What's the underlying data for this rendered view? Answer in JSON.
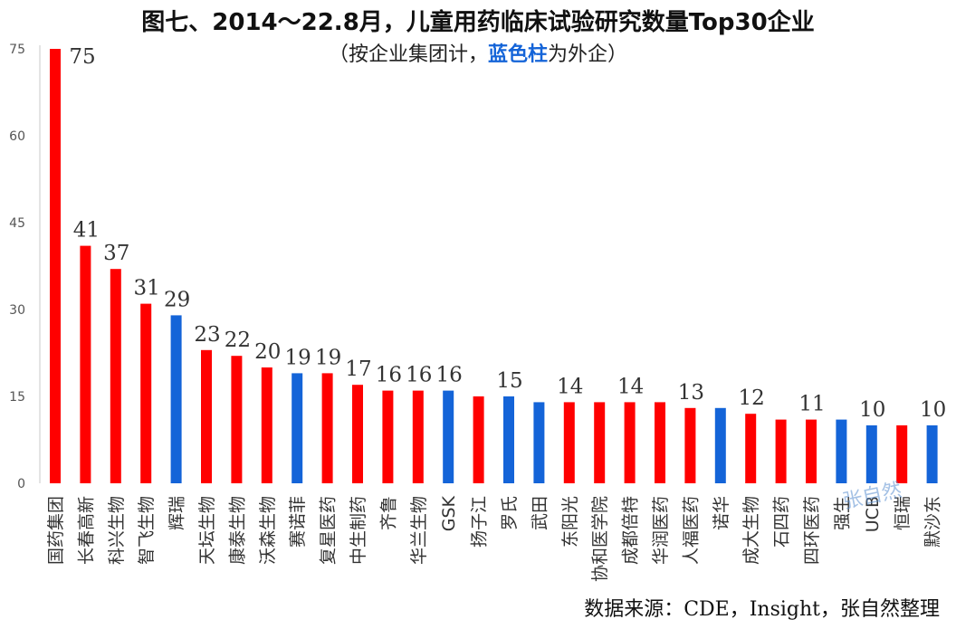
{
  "title": "图七、2014～22.8月，儿童用药临床试验研究数量Top30企业",
  "subtitle": {
    "before": "（按企业集团计，",
    "highlight": "蓝色柱",
    "after": "为外企）"
  },
  "source": "数据来源：CDE，Insight，张自然整理",
  "watermark": "张自然",
  "colors": {
    "domestic": "#ff0000",
    "foreign": "#1464d8"
  },
  "chart_data": {
    "type": "bar",
    "categories": [
      "国药集团",
      "长春高新",
      "科兴生物",
      "智飞生物",
      "辉瑞",
      "天坛生物",
      "康泰生物",
      "沃森生物",
      "赛诺菲",
      "复星医药",
      "中生制药",
      "齐鲁",
      "华兰生物",
      "GSK",
      "扬子江",
      "罗氏",
      "武田",
      "东阳光",
      "协和医学院",
      "成都倍特",
      "华润医药",
      "人福医药",
      "诺华",
      "成大生物",
      "石四药",
      "四环医药",
      "强生",
      "UCB",
      "恒瑞",
      "默沙东"
    ],
    "values": [
      75,
      41,
      37,
      31,
      29,
      23,
      22,
      20,
      19,
      19,
      17,
      16,
      16,
      16,
      15,
      15,
      14,
      14,
      14,
      14,
      14,
      13,
      13,
      12,
      11,
      11,
      11,
      10,
      10,
      10
    ],
    "foreign": [
      false,
      false,
      false,
      false,
      true,
      false,
      false,
      false,
      true,
      false,
      false,
      false,
      false,
      true,
      false,
      true,
      true,
      false,
      false,
      false,
      false,
      false,
      true,
      false,
      false,
      false,
      true,
      true,
      false,
      true
    ],
    "value_labels": [
      "75",
      "41",
      "37",
      "31",
      "29",
      "23",
      "22",
      "20",
      "19",
      "19",
      "17",
      "16",
      "16",
      "16",
      "",
      "15",
      "",
      "14",
      "",
      "14",
      "",
      "13",
      "",
      "12",
      "",
      "11",
      "",
      "10",
      "",
      "10"
    ],
    "yticks": [
      "0",
      "15",
      "30",
      "45",
      "60",
      "75"
    ],
    "ylim": [
      0,
      75
    ],
    "grid": false
  }
}
